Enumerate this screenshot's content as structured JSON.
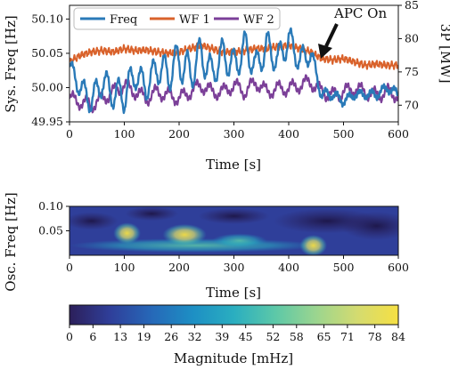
{
  "chart_data": [
    {
      "type": "line",
      "xlabel": "Time [s]",
      "ylabel": "Sys. Freq [Hz]",
      "ylabel_right": "3P [MW]",
      "x_ticks": [
        "0",
        "100",
        "200",
        "300",
        "400",
        "500",
        "600"
      ],
      "y_ticks": [
        "49.95",
        "50.00",
        "50.05",
        "50.10"
      ],
      "y2_ticks": [
        "70",
        "75",
        "80",
        "85"
      ],
      "xlim": [
        0,
        600
      ],
      "ylim": [
        49.95,
        50.12
      ],
      "y2lim": [
        67.5,
        85
      ],
      "legend_position": "top-left",
      "colors": {
        "freq": "#2a7ab8",
        "wf1": "#d9622b",
        "wf2": "#7b3f98"
      },
      "series": [
        {
          "name": "Freq",
          "axis": "left",
          "x": [
            0,
            20,
            40,
            60,
            80,
            100,
            120,
            140,
            160,
            180,
            200,
            220,
            240,
            260,
            280,
            300,
            320,
            340,
            360,
            380,
            400,
            420,
            440,
            460,
            480,
            500,
            520,
            540,
            560,
            580,
            600
          ],
          "values": [
            50.03,
            50.0,
            49.98,
            50.01,
            49.99,
            49.99,
            50.02,
            50.0,
            50.03,
            50.02,
            50.04,
            50.02,
            50.05,
            50.02,
            50.05,
            50.03,
            50.06,
            50.03,
            50.06,
            50.04,
            50.07,
            50.04,
            50.05,
            49.99,
            49.99,
            49.98,
            49.99,
            49.99,
            49.99,
            50.0,
            49.99
          ],
          "oscillation_amplitude": [
            0.012,
            0.015,
            0.018,
            0.02,
            0.02,
            0.025,
            0.02,
            0.018,
            0.022,
            0.025,
            0.028,
            0.027,
            0.025,
            0.022,
            0.022,
            0.025,
            0.022,
            0.02,
            0.022,
            0.02,
            0.02,
            0.018,
            0.014,
            0.008,
            0.006,
            0.006,
            0.005,
            0.005,
            0.006,
            0.006,
            0.006
          ]
        },
        {
          "name": "WF 1",
          "axis": "right",
          "x": [
            0,
            20,
            40,
            60,
            80,
            100,
            120,
            140,
            160,
            180,
            200,
            220,
            240,
            260,
            280,
            300,
            320,
            340,
            360,
            380,
            400,
            420,
            440,
            460,
            480,
            500,
            520,
            540,
            560,
            580,
            600
          ],
          "values": [
            76.5,
            77.5,
            78.0,
            78.2,
            78.0,
            78.5,
            78.2,
            78.3,
            78.0,
            77.8,
            78.0,
            78.5,
            79.0,
            78.5,
            78.0,
            78.0,
            78.2,
            78.5,
            78.5,
            78.8,
            79.0,
            78.5,
            78.0,
            77.0,
            76.8,
            77.0,
            76.5,
            76.0,
            76.2,
            76.0,
            76.0
          ]
        },
        {
          "name": "WF 2",
          "axis": "right",
          "x": [
            0,
            20,
            40,
            60,
            80,
            100,
            120,
            140,
            160,
            180,
            200,
            220,
            240,
            260,
            280,
            300,
            320,
            340,
            360,
            380,
            400,
            420,
            440,
            460,
            480,
            500,
            520,
            540,
            560,
            580,
            600
          ],
          "values": [
            71.0,
            70.5,
            70.0,
            71.0,
            72.0,
            73.0,
            72.0,
            71.0,
            72.0,
            71.5,
            71.0,
            72.0,
            73.0,
            72.0,
            72.0,
            73.0,
            72.0,
            73.5,
            72.0,
            72.5,
            72.5,
            73.0,
            73.5,
            72.0,
            71.5,
            72.0,
            72.5,
            72.0,
            71.5,
            72.0,
            71.5
          ]
        }
      ],
      "annotations": [
        {
          "text": "APC On",
          "arrow_to_x": 460
        }
      ]
    },
    {
      "type": "heatmap",
      "xlabel": "Time [s]",
      "ylabel": "Osc. Freq [Hz]",
      "x_ticks": [
        "0",
        "100",
        "200",
        "300",
        "400",
        "500",
        "600"
      ],
      "y_ticks": [
        "0.05",
        "0.10"
      ],
      "xlim": [
        0,
        600
      ],
      "ylim": [
        0,
        0.1
      ],
      "bands": [
        {
          "x_start": 0,
          "x_end": 460,
          "freq": 0.02,
          "magnitude": 40
        },
        {
          "x_start": 80,
          "x_end": 130,
          "freq": 0.045,
          "magnitude": 70
        },
        {
          "x_start": 170,
          "x_end": 250,
          "freq": 0.042,
          "magnitude": 68
        },
        {
          "x_start": 260,
          "x_end": 360,
          "freq": 0.03,
          "magnitude": 40
        },
        {
          "x_start": 420,
          "x_end": 470,
          "freq": 0.02,
          "magnitude": 65
        }
      ]
    },
    {
      "type": "colorbar",
      "xlabel": "Magnitude [mHz]",
      "tick_labels": [
        "0",
        "6",
        "13",
        "19",
        "26",
        "32",
        "39",
        "45",
        "52",
        "58",
        "65",
        "71",
        "78",
        "84"
      ],
      "range": [
        0,
        84
      ],
      "colors": [
        "#2c1f5a",
        "#2f3f9a",
        "#2668b8",
        "#1d8fc4",
        "#2aaec0",
        "#5cc8a8",
        "#9bd58f",
        "#d4db70",
        "#f6e043"
      ]
    }
  ]
}
